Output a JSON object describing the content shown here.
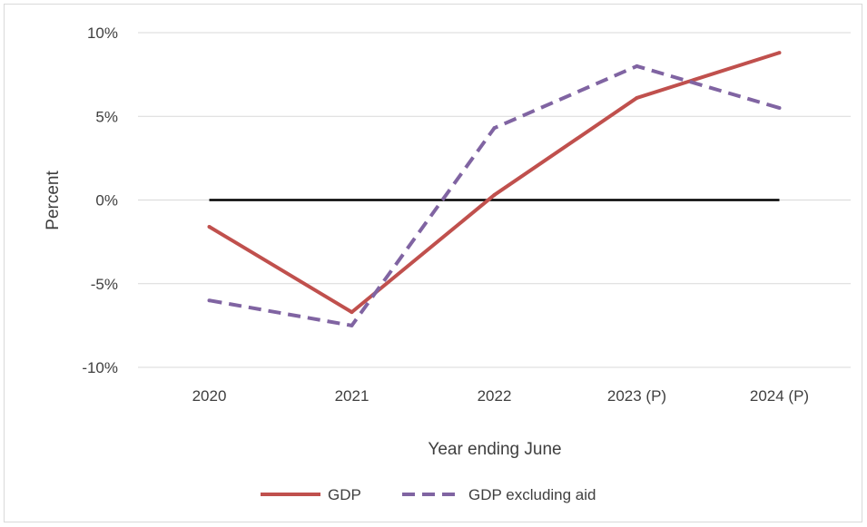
{
  "chart_data": {
    "type": "line",
    "categories": [
      "2020",
      "2021",
      "2022",
      "2023 (P)",
      "2024 (P)"
    ],
    "series": [
      {
        "name": "GDP",
        "values": [
          -1.6,
          -6.7,
          0.3,
          6.1,
          8.8
        ],
        "color": "#c0504d",
        "dash": "solid"
      },
      {
        "name": "GDP excluding aid",
        "values": [
          -6.0,
          -7.5,
          4.3,
          8.0,
          5.5
        ],
        "color": "#8064a2",
        "dash": "dashed"
      }
    ],
    "reference_line": {
      "value": 0,
      "color": "#000000"
    },
    "xlabel": "Year ending June",
    "ylabel": "Percent",
    "ylim": [
      -10,
      10
    ],
    "yticks": [
      10,
      5,
      0,
      -5,
      -10
    ],
    "ytick_labels": [
      "10%",
      "5%",
      "0%",
      "-5%",
      "-10%"
    ],
    "grid": true,
    "legend_position": "bottom"
  }
}
